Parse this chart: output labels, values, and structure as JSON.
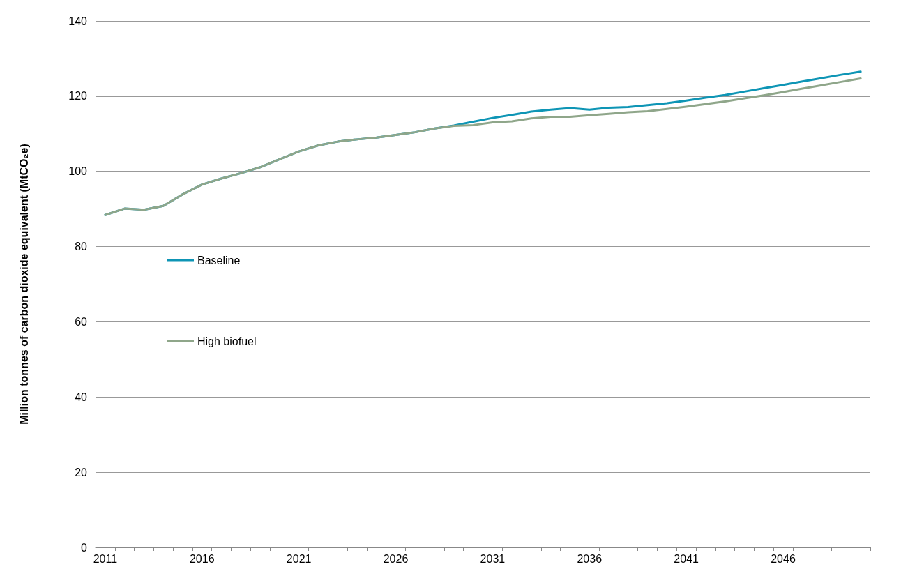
{
  "chart_data": {
    "type": "line",
    "ylabel": "Million tonnes of carbon dioxide equivalent (MtCO₂e)",
    "categories": [
      "2011",
      null,
      null,
      null,
      null,
      "2016",
      null,
      null,
      null,
      null,
      "2021",
      null,
      null,
      null,
      null,
      "2026",
      null,
      null,
      null,
      null,
      "2031",
      null,
      null,
      null,
      null,
      "2036",
      null,
      null,
      null,
      null,
      "2041",
      null,
      null,
      null,
      null,
      "2046",
      null,
      null,
      null,
      null
    ],
    "series": [
      {
        "name": "Baseline",
        "color": "#0e95b5",
        "values": [
          88.4,
          90.1,
          89.8,
          90.8,
          93.9,
          96.5,
          98.1,
          99.5,
          101.1,
          103.2,
          105.3,
          106.9,
          107.9,
          108.5,
          109.0,
          109.7,
          110.4,
          111.4,
          112.2,
          113.2,
          114.2,
          115.0,
          115.9,
          116.4,
          116.8,
          116.4,
          116.9,
          117.1,
          117.6,
          118.1,
          118.8,
          119.6,
          120.3,
          121.2,
          122.1,
          123.0,
          123.9,
          124.8,
          125.7,
          126.5
        ]
      },
      {
        "name": "High biofuel",
        "color": "#8fa68a",
        "values": [
          88.4,
          90.1,
          89.8,
          90.8,
          93.9,
          96.5,
          98.1,
          99.5,
          101.1,
          103.2,
          105.3,
          106.9,
          107.9,
          108.5,
          109.0,
          109.7,
          110.4,
          111.4,
          112.1,
          112.3,
          113.0,
          113.3,
          114.1,
          114.5,
          114.5,
          114.9,
          115.3,
          115.7,
          116.0,
          116.6,
          117.2,
          117.9,
          118.6,
          119.4,
          120.2,
          121.1,
          122.0,
          122.9,
          123.8,
          124.7
        ]
      }
    ],
    "ylim": [
      0,
      140
    ],
    "yticks": [
      0,
      20,
      40,
      60,
      80,
      100,
      120,
      140
    ],
    "grid": "y",
    "legend": "left",
    "marker": "none",
    "line_style": "solid"
  }
}
